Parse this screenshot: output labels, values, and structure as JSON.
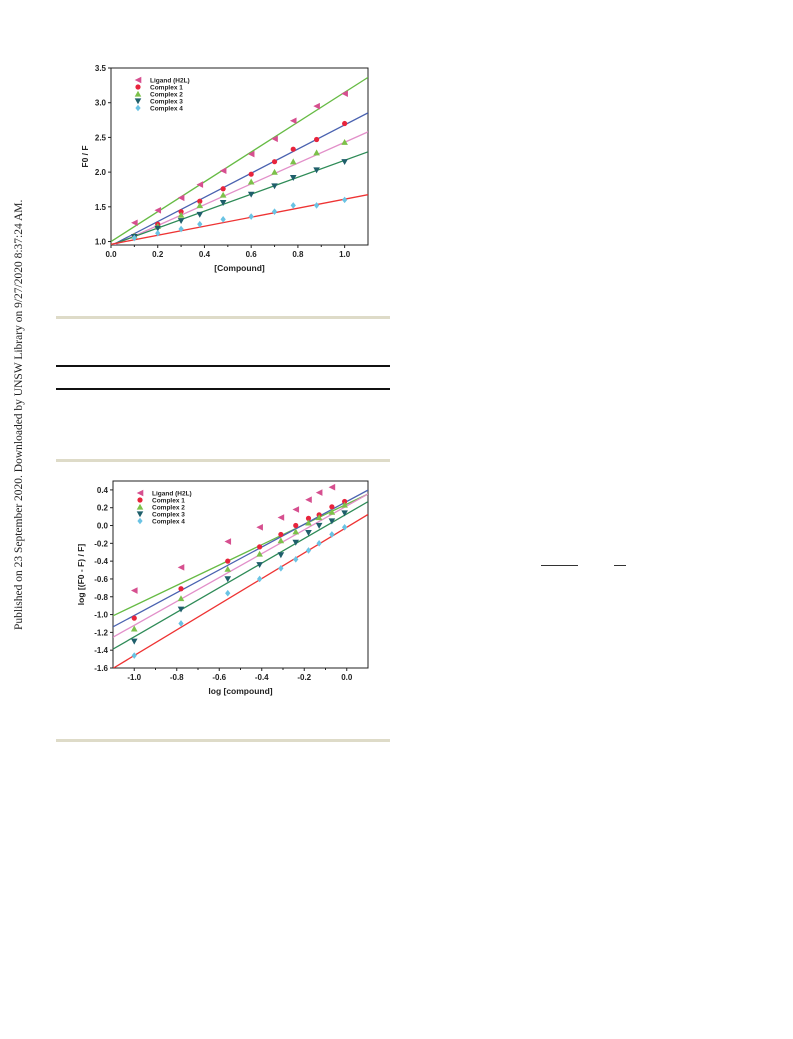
{
  "side_note": "Published on 23 September 2020. Downloaded by UNSW Library on 9/27/2020 8:37:24 AM.",
  "colors": {
    "ligand": "#d64f8f",
    "complex1": "#e8243c",
    "complex2": "#7cc14a",
    "complex3": "#1f5f6b",
    "complex4": "#6ac3e4",
    "line_ligand": "#66bb44",
    "line_c1": "#4a62b0",
    "line_c2": "#e28fc9",
    "line_c3": "#2e8b57",
    "line_c4": "#ee3333",
    "rule_beige": "#dedbc8"
  },
  "chart_data": [
    {
      "type": "scatter",
      "title": "",
      "xlabel": "[Compound]",
      "ylabel": "F0 / F",
      "xlim": [
        0.0,
        1.1
      ],
      "ylim": [
        0.95,
        3.5
      ],
      "xticks": [
        "0.0",
        "0.2",
        "0.4",
        "0.6",
        "0.8",
        "1.0"
      ],
      "yticks": [
        "1.0",
        "1.5",
        "2.0",
        "2.5",
        "3.0",
        "3.5"
      ],
      "legend_position": "top-left",
      "series": [
        {
          "name": "Ligand (H2L)",
          "marker": "triangle-left",
          "x": [
            0.1,
            0.2,
            0.3,
            0.38,
            0.48,
            0.6,
            0.7,
            0.78,
            0.88,
            1.0
          ],
          "y": [
            1.27,
            1.45,
            1.63,
            1.82,
            2.02,
            2.26,
            2.48,
            2.74,
            2.95,
            3.13
          ],
          "fit": [
            1.0,
            2.15
          ]
        },
        {
          "name": "Complex 1",
          "marker": "circle",
          "x": [
            0.1,
            0.2,
            0.3,
            0.38,
            0.48,
            0.6,
            0.7,
            0.78,
            0.88,
            1.0
          ],
          "y": [
            1.08,
            1.25,
            1.43,
            1.58,
            1.76,
            1.97,
            2.15,
            2.33,
            2.47,
            2.7
          ],
          "fit": [
            0.94,
            1.74
          ]
        },
        {
          "name": "Complex 2",
          "marker": "triangle-up",
          "x": [
            0.1,
            0.2,
            0.3,
            0.38,
            0.48,
            0.6,
            0.7,
            0.78,
            0.88,
            1.0
          ],
          "y": [
            1.08,
            1.22,
            1.38,
            1.52,
            1.67,
            1.86,
            2.0,
            2.15,
            2.28,
            2.43
          ],
          "fit": [
            0.93,
            1.5
          ]
        },
        {
          "name": "Complex 3",
          "marker": "triangle-down",
          "x": [
            0.1,
            0.2,
            0.3,
            0.38,
            0.48,
            0.6,
            0.7,
            0.78,
            0.88,
            1.0
          ],
          "y": [
            1.07,
            1.19,
            1.3,
            1.39,
            1.56,
            1.68,
            1.8,
            1.92,
            2.03,
            2.15
          ],
          "fit": [
            0.95,
            1.22
          ]
        },
        {
          "name": "Complex 4",
          "marker": "diamond",
          "x": [
            0.1,
            0.2,
            0.3,
            0.38,
            0.48,
            0.6,
            0.7,
            0.78,
            0.88,
            1.0
          ],
          "y": [
            1.05,
            1.12,
            1.18,
            1.25,
            1.32,
            1.36,
            1.43,
            1.52,
            1.52,
            1.6
          ],
          "fit": [
            0.96,
            0.65
          ]
        }
      ]
    },
    {
      "type": "scatter",
      "title": "",
      "xlabel": "log [compound]",
      "ylabel": "log [(F0 - F) / F]",
      "xlim": [
        -1.1,
        0.1
      ],
      "ylim": [
        -1.6,
        0.5
      ],
      "xticks": [
        "-1.0",
        "-0.8",
        "-0.6",
        "-0.4",
        "-0.2",
        "0.0"
      ],
      "yticks": [
        "0.4",
        "0.2",
        "0.0",
        "-0.2",
        "-0.4",
        "-0.6",
        "-0.8",
        "-1.0",
        "-1.2",
        "-1.4",
        "-1.6"
      ],
      "legend_position": "top-left",
      "series": [
        {
          "name": "Ligand (H2L)",
          "marker": "triangle-left",
          "x": [
            -1.0,
            -0.78,
            -0.56,
            -0.41,
            -0.31,
            -0.24,
            -0.18,
            -0.13,
            -0.07
          ],
          "y": [
            -0.73,
            -0.47,
            -0.18,
            -0.02,
            0.09,
            0.18,
            0.29,
            0.37,
            0.43
          ],
          "fit": [
            0.24,
            1.14
          ]
        },
        {
          "name": "Complex 1",
          "marker": "circle",
          "x": [
            -1.0,
            -0.78,
            -0.56,
            -0.41,
            -0.31,
            -0.24,
            -0.18,
            -0.13,
            -0.07,
            -0.01
          ],
          "y": [
            -1.04,
            -0.71,
            -0.4,
            -0.24,
            -0.1,
            0.0,
            0.08,
            0.12,
            0.21,
            0.27
          ],
          "fit": [
            0.27,
            1.28
          ]
        },
        {
          "name": "Complex 2",
          "marker": "triangle-up",
          "x": [
            -1.0,
            -0.78,
            -0.56,
            -0.41,
            -0.31,
            -0.24,
            -0.18,
            -0.13,
            -0.07,
            -0.01
          ],
          "y": [
            -1.16,
            -0.82,
            -0.49,
            -0.32,
            -0.17,
            -0.07,
            0.03,
            0.09,
            0.15,
            0.23
          ],
          "fit": [
            0.22,
            1.34
          ]
        },
        {
          "name": "Complex 3",
          "marker": "triangle-down",
          "x": [
            -1.0,
            -0.78,
            -0.56,
            -0.41,
            -0.31,
            -0.24,
            -0.18,
            -0.13,
            -0.07,
            -0.01
          ],
          "y": [
            -1.3,
            -0.94,
            -0.6,
            -0.44,
            -0.33,
            -0.19,
            -0.08,
            0.0,
            0.05,
            0.14
          ],
          "fit": [
            0.13,
            1.38
          ]
        },
        {
          "name": "Complex 4",
          "marker": "diamond",
          "x": [
            -1.0,
            -0.78,
            -0.56,
            -0.41,
            -0.31,
            -0.24,
            -0.18,
            -0.13,
            -0.07,
            -0.01
          ],
          "y": [
            -1.46,
            -1.1,
            -0.76,
            -0.6,
            -0.48,
            -0.38,
            -0.28,
            -0.2,
            -0.1,
            -0.02
          ],
          "fit": [
            -0.02,
            1.44
          ]
        }
      ]
    }
  ]
}
